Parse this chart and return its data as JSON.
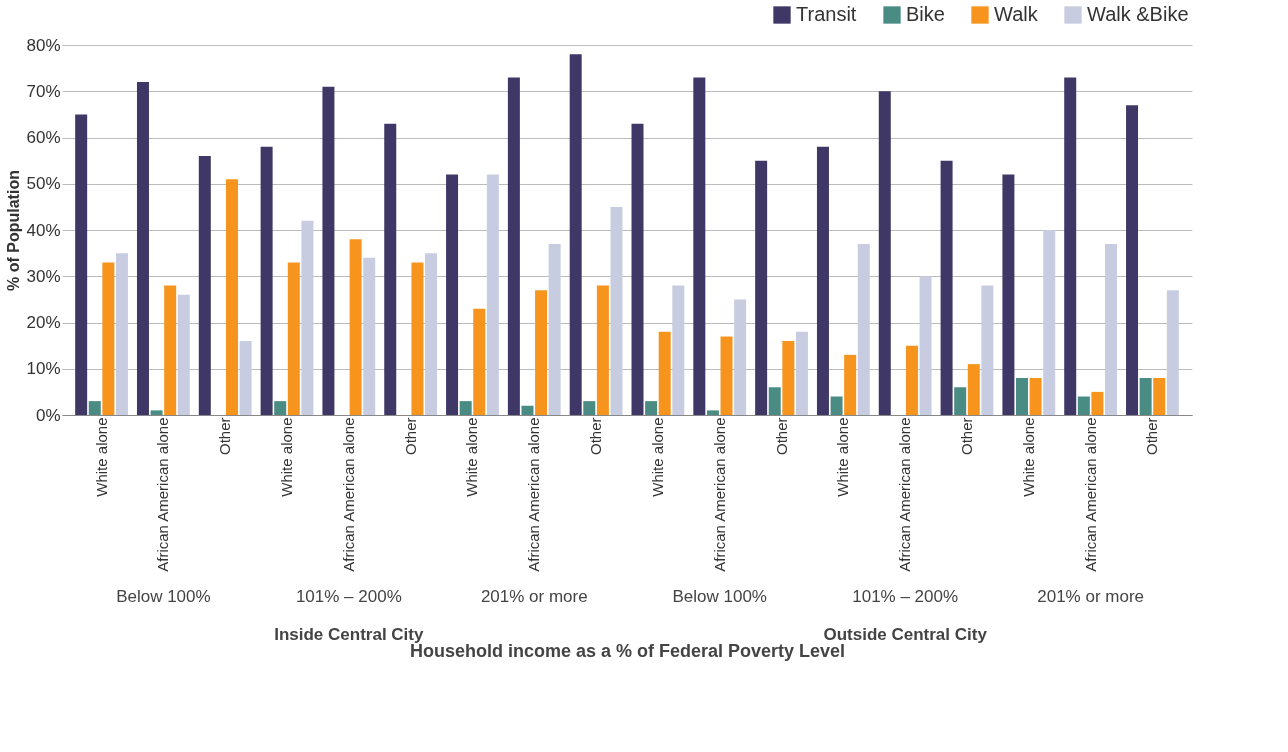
{
  "chart_data": {
    "type": "bar",
    "ylabel": "% of Population",
    "xlabel": "Household income as a % of Federal Poverty Level",
    "categories": [
      "White alone",
      "African American alone",
      "Other",
      "White alone",
      "African American alone",
      "Other",
      "White alone",
      "African American alone",
      "Other",
      "White alone",
      "African American alone",
      "Other",
      "White alone",
      "African American alone",
      "Other",
      "White alone",
      "African American alone",
      "Other"
    ],
    "series": [
      {
        "name": "Transit",
        "color": "#3f3866",
        "values": [
          65,
          72,
          56,
          58,
          71,
          63,
          52,
          73,
          78,
          63,
          73,
          55,
          58,
          70,
          55,
          52,
          73,
          67
        ]
      },
      {
        "name": "Bike",
        "color": "#4a8c84",
        "values": [
          3,
          1,
          0,
          3,
          0,
          0,
          3,
          2,
          3,
          3,
          1,
          6,
          4,
          0,
          6,
          8,
          4,
          8
        ]
      },
      {
        "name": "Walk",
        "color": "#f7941d",
        "values": [
          33,
          28,
          51,
          33,
          38,
          33,
          23,
          27,
          28,
          18,
          17,
          16,
          13,
          15,
          11,
          8,
          5,
          8
        ]
      },
      {
        "name": "Walk &Bike",
        "color": "#c8cce0",
        "values": [
          35,
          26,
          16,
          42,
          34,
          35,
          52,
          37,
          45,
          28,
          25,
          18,
          37,
          30,
          28,
          40,
          37,
          27
        ]
      }
    ],
    "annotations": [
      "Below 100%",
      "101% – 200%",
      "201% or more",
      "Below 100%",
      "101% – 200%",
      "201% or more",
      "Inside Central City",
      "Outside Central City"
    ],
    "ylim": [
      0,
      80
    ],
    "yticks": [
      {
        "value": 0,
        "label": "0%"
      },
      {
        "value": 10,
        "label": "10%"
      },
      {
        "value": 20,
        "label": "20%"
      },
      {
        "value": 30,
        "label": "30%"
      },
      {
        "value": 40,
        "label": "40%"
      },
      {
        "value": 50,
        "label": "50%"
      },
      {
        "value": 60,
        "label": "60%"
      },
      {
        "value": 70,
        "label": "70%"
      },
      {
        "value": 80,
        "label": "80%"
      }
    ],
    "grid": "y",
    "legend": "top right"
  }
}
